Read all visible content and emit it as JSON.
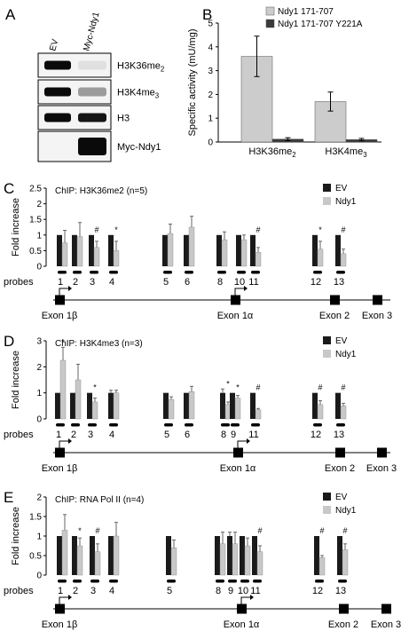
{
  "panelA": {
    "letter": "A",
    "lanes": [
      "EV",
      "Myc-Ndy1"
    ],
    "rows": [
      {
        "label": "H3K36me",
        "sub": "2",
        "ev": 1.0,
        "ndy1": 0.05
      },
      {
        "label": "H3K4me",
        "sub": "3",
        "ev": 1.0,
        "ndy1": 0.35
      },
      {
        "label": "H3",
        "sub": "",
        "ev": 1.0,
        "ndy1": 0.95
      },
      {
        "label": "Myc-Ndy1",
        "sub": "",
        "ev": 0.0,
        "ndy1": 1.0
      }
    ]
  },
  "chart_data": [
    {
      "panel": "B",
      "type": "bar",
      "ylabel": "Specific activity (mU/mg)",
      "ylim": [
        0,
        5
      ],
      "yticks": [
        0,
        1,
        2,
        3,
        4,
        5
      ],
      "categories": [
        {
          "text": "H3K36me",
          "sub": "2"
        },
        {
          "text": "H3K4me",
          "sub": "3"
        }
      ],
      "series": [
        {
          "name": "Ndy1 171-707",
          "color": "#cccccc",
          "values": [
            3.6,
            1.7
          ],
          "err": [
            0.85,
            0.4
          ]
        },
        {
          "name": "Ndy1 171-707 Y221A",
          "color": "#3a3a3a",
          "values": [
            0.12,
            0.1
          ],
          "err": [
            0.06,
            0.05
          ]
        }
      ],
      "legend": "top-right"
    },
    {
      "panel": "C",
      "type": "bar",
      "title": "ChIP: H3K36me2 (n=5)",
      "ylabel": "Fold increase",
      "ylim": [
        0,
        2.5
      ],
      "yticks": [
        0,
        0.5,
        1,
        1.5,
        2,
        2.5
      ],
      "series": [
        {
          "name": "EV",
          "color": "#1a1a1a"
        },
        {
          "name": "Ndy1",
          "color": "#c8c8c8"
        }
      ],
      "probes": [
        {
          "label": "1",
          "pos": 70,
          "ev": 1,
          "ndy1": 0.75,
          "ev_err": 0,
          "ndy1_err": 0.4,
          "mark": ""
        },
        {
          "label": "2",
          "pos": 87,
          "ev": 1,
          "ndy1": 0.95,
          "ev_err": 0,
          "ndy1_err": 0.45,
          "mark": ""
        },
        {
          "label": "3",
          "pos": 106,
          "ev": 1,
          "ndy1": 0.6,
          "ev_err": 0,
          "ndy1_err": 0.2,
          "mark": "#"
        },
        {
          "label": "4",
          "pos": 128,
          "ev": 1,
          "ndy1": 0.5,
          "ev_err": 0,
          "ndy1_err": 0.3,
          "mark": "*"
        },
        {
          "label": "5",
          "pos": 189,
          "ev": 1,
          "ndy1": 1.05,
          "ev_err": 0,
          "ndy1_err": 0.3,
          "mark": ""
        },
        {
          "label": "6",
          "pos": 213,
          "ev": 1,
          "ndy1": 1.25,
          "ev_err": 0,
          "ndy1_err": 0.35,
          "mark": ""
        },
        {
          "label": "8",
          "pos": 250,
          "ev": 1,
          "ndy1": 0.85,
          "ev_err": 0,
          "ndy1_err": 0.25,
          "mark": ""
        },
        {
          "label": "10",
          "pos": 272,
          "ev": 1,
          "ndy1": 0.85,
          "ev_err": 0,
          "ndy1_err": 0.15,
          "mark": ""
        },
        {
          "label": "11",
          "pos": 288,
          "ev": 1,
          "ndy1": 0.45,
          "ev_err": 0,
          "ndy1_err": 0.15,
          "mark": "#"
        },
        {
          "label": "12",
          "pos": 358,
          "ev": 1,
          "ndy1": 0.55,
          "ev_err": 0,
          "ndy1_err": 0.25,
          "mark": "*"
        },
        {
          "label": "13",
          "pos": 384,
          "ev": 1,
          "ndy1": 0.4,
          "ev_err": 0,
          "ndy1_err": 0.15,
          "mark": "#"
        }
      ],
      "exons": [
        {
          "label": "Exon 1β",
          "pos": 67
        },
        {
          "label": "Exon 1α",
          "pos": 265
        },
        {
          "label": "Exon 2",
          "pos": 377
        },
        {
          "label": "Exon 3",
          "pos": 425
        }
      ]
    },
    {
      "panel": "D",
      "type": "bar",
      "title": "ChIP: H3K4me3 (n=3)",
      "ylabel": "Fold increase",
      "ylim": [
        0,
        3
      ],
      "yticks": [
        0,
        1,
        2,
        3
      ],
      "series": [
        {
          "name": "EV",
          "color": "#1a1a1a"
        },
        {
          "name": "Ndy1",
          "color": "#c8c8c8"
        }
      ],
      "probes": [
        {
          "label": "1",
          "pos": 68,
          "ev": 1,
          "ndy1": 2.25,
          "ev_err": 0,
          "ndy1_err": 0.5,
          "mark": "*"
        },
        {
          "label": "2",
          "pos": 85,
          "ev": 1,
          "ndy1": 1.5,
          "ev_err": 0,
          "ndy1_err": 0.6,
          "mark": ""
        },
        {
          "label": "3",
          "pos": 104,
          "ev": 1,
          "ndy1": 0.65,
          "ev_err": 0,
          "ndy1_err": 0.15,
          "mark": "*"
        },
        {
          "label": "4",
          "pos": 128,
          "ev": 1,
          "ndy1": 1.0,
          "ev_err": 0.1,
          "ndy1_err": 0.1,
          "mark": ""
        },
        {
          "label": "5",
          "pos": 190,
          "ev": 1,
          "ndy1": 0.75,
          "ev_err": 0,
          "ndy1_err": 0.1,
          "mark": ""
        },
        {
          "label": "6",
          "pos": 213,
          "ev": 1,
          "ndy1": 1.05,
          "ev_err": 0,
          "ndy1_err": 0.2,
          "mark": ""
        },
        {
          "label": "8",
          "pos": 254,
          "ev": 1,
          "ndy1": 0.55,
          "ev_err": 0.15,
          "ndy1_err": 0.1,
          "mark": "*"
        },
        {
          "label": "9",
          "pos": 265,
          "ev": 1,
          "ndy1": 0.8,
          "ev_err": 0,
          "ndy1_err": 0.1,
          "mark": "*"
        },
        {
          "label": "11",
          "pos": 288,
          "ev": 1,
          "ndy1": 0.35,
          "ev_err": 0,
          "ndy1_err": 0.05,
          "mark": "#"
        },
        {
          "label": "12",
          "pos": 358,
          "ev": 1,
          "ndy1": 0.55,
          "ev_err": 0,
          "ndy1_err": 0.15,
          "mark": "#"
        },
        {
          "label": "13",
          "pos": 384,
          "ev": 1,
          "ndy1": 0.5,
          "ev_err": 0,
          "ndy1_err": 0.1,
          "mark": "#"
        }
      ],
      "exons": [
        {
          "label": "Exon 1β",
          "pos": 67
        },
        {
          "label": "Exon 1α",
          "pos": 268
        },
        {
          "label": "Exon 2",
          "pos": 383
        },
        {
          "label": "Exon 3",
          "pos": 430
        }
      ]
    },
    {
      "panel": "E",
      "type": "bar",
      "title": "ChIP: RNA Pol II (n=4)",
      "ylabel": "Fold increase",
      "ylim": [
        0,
        2
      ],
      "yticks": [
        0,
        0.5,
        1,
        1.5,
        2
      ],
      "series": [
        {
          "name": "EV",
          "color": "#1a1a1a"
        },
        {
          "name": "Ndy1",
          "color": "#c8c8c8"
        }
      ],
      "probes": [
        {
          "label": "1",
          "pos": 70,
          "ev": 1,
          "ndy1": 1.15,
          "ev_err": 0,
          "ndy1_err": 0.4,
          "mark": ""
        },
        {
          "label": "2",
          "pos": 87,
          "ev": 1,
          "ndy1": 0.75,
          "ev_err": 0,
          "ndy1_err": 0.2,
          "mark": "*"
        },
        {
          "label": "3",
          "pos": 107,
          "ev": 1,
          "ndy1": 0.6,
          "ev_err": 0,
          "ndy1_err": 0.2,
          "mark": "#"
        },
        {
          "label": "4",
          "pos": 128,
          "ev": 1,
          "ndy1": 1.0,
          "ev_err": 0,
          "ndy1_err": 0.35,
          "mark": ""
        },
        {
          "label": "5",
          "pos": 193,
          "ev": 1,
          "ndy1": 0.7,
          "ev_err": 0,
          "ndy1_err": 0.2,
          "mark": ""
        },
        {
          "label": "8",
          "pos": 248,
          "ev": 1,
          "ndy1": 0.8,
          "ev_err": 0,
          "ndy1_err": 0.3,
          "mark": ""
        },
        {
          "label": "9",
          "pos": 262,
          "ev": 1,
          "ndy1": 0.8,
          "ev_err": 0.1,
          "ndy1_err": 0.3,
          "mark": ""
        },
        {
          "label": "10",
          "pos": 276,
          "ev": 1,
          "ndy1": 0.75,
          "ev_err": 0,
          "ndy1_err": 0.2,
          "mark": ""
        },
        {
          "label": "11",
          "pos": 290,
          "ev": 1,
          "ndy1": 0.6,
          "ev_err": 0,
          "ndy1_err": 0.15,
          "mark": "#"
        },
        {
          "label": "12",
          "pos": 360,
          "ev": 1,
          "ndy1": 0.45,
          "ev_err": 0,
          "ndy1_err": 0.05,
          "mark": "#"
        },
        {
          "label": "13",
          "pos": 386,
          "ev": 1,
          "ndy1": 0.65,
          "ev_err": 0,
          "ndy1_err": 0.15,
          "mark": "#"
        }
      ],
      "exons": [
        {
          "label": "Exon 1β",
          "pos": 67
        },
        {
          "label": "Exon 1α",
          "pos": 272
        },
        {
          "label": "Exon 2",
          "pos": 387
        },
        {
          "label": "Exon 3",
          "pos": 435
        }
      ]
    }
  ],
  "probes_label": "probes"
}
